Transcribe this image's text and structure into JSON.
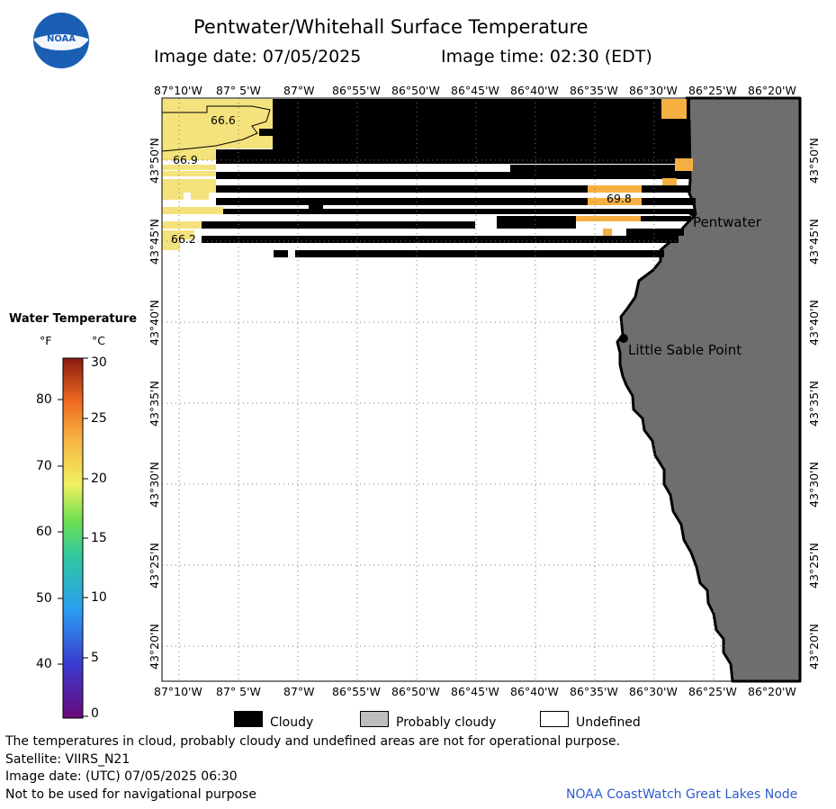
{
  "header": {
    "logo_text": "NOAA",
    "title": "Pentwater/Whitehall Surface Temperature",
    "image_date": "Image date: 07/05/2025",
    "image_time": "Image time: 02:30 (EDT)"
  },
  "map": {
    "lon_ticks": [
      "87°10'W",
      "87° 5'W",
      "87°W",
      "86°55'W",
      "86°50'W",
      "86°45'W",
      "86°40'W",
      "86°35'W",
      "86°30'W",
      "86°25'W",
      "86°20'W"
    ],
    "lat_ticks": [
      "43°50'N",
      "43°45'N",
      "43°40'N",
      "43°35'N",
      "43°30'N",
      "43°25'N",
      "43°20'N"
    ],
    "places": {
      "pentwater": "Pentwater",
      "little_sable": "Little Sable Point"
    },
    "contour_labels": {
      "a": "66.6",
      "b": "66.9",
      "c": "69.8",
      "d": "66.2"
    },
    "colors": {
      "land": "#6e6e6e",
      "cloud": "#000000",
      "warm": "#f4e27c",
      "warmer": "#f6b040"
    }
  },
  "colorbar": {
    "title": "Water Temperature",
    "unit_f": "°F",
    "unit_c": "°C",
    "f_ticks": [
      "80",
      "70",
      "60",
      "50",
      "40"
    ],
    "c_ticks": [
      "30",
      "25",
      "20",
      "15",
      "10",
      "5",
      "0"
    ]
  },
  "legend": {
    "cloudy": "Cloudy",
    "probably_cloudy": "Probably cloudy",
    "undefined": "Undefined",
    "cloudy_color": "#000000",
    "probably_cloudy_color": "#bdbdbd",
    "undefined_color": "#ffffff"
  },
  "footer": {
    "disclaimer": "The temperatures in cloud, probably cloudy and undefined areas are not for operational purpose.",
    "satellite": "Satellite: VIIRS_N21",
    "utc_date": "Image date: (UTC) 07/05/2025  06:30",
    "nav": "Not to be used for navigational purpose",
    "credit": "NOAA CoastWatch Great Lakes Node"
  }
}
